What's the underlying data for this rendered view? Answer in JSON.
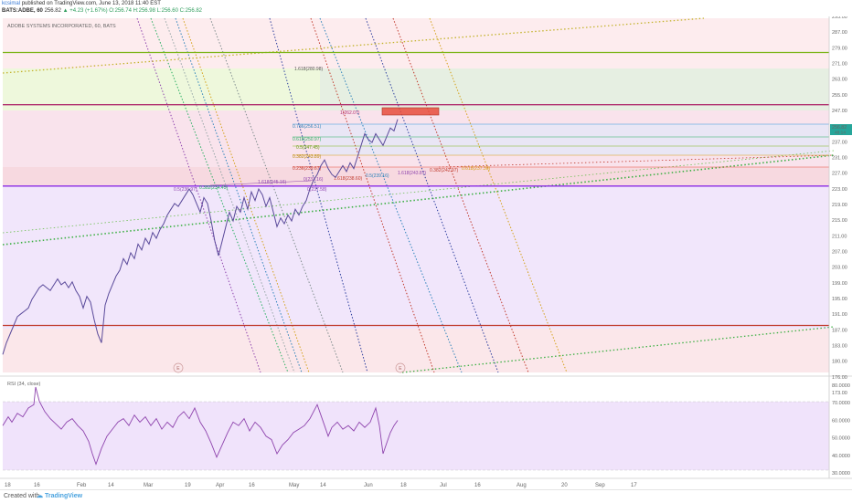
{
  "header": {
    "user": "kcsimal",
    "published": "published on TradingView.com, June 13, 2018 11:40 EST",
    "ticker": "BATS:ADBE, 60",
    "price": "256.82",
    "change": "▲ +4.23 (+1.67%)",
    "ohlc": "O:256.74 H:256.98 L:256.60 C:256.82"
  },
  "chart_data": [
    {
      "type": "line",
      "title": "ADOBE SYSTEMS INCORPORATED, 60, BATS",
      "x_ticks": [
        "18",
        "16",
        "Feb",
        "14",
        "Mar",
        "19",
        "Apr",
        "16",
        "May",
        "14",
        "Jun",
        "18",
        "Jul",
        "16",
        "Aug",
        "20",
        "Sep",
        "17"
      ],
      "y_ticks": [
        "295.00",
        "287.00",
        "279.00",
        "271.00",
        "263.00",
        "255.00",
        "247.00",
        "242.00",
        "237.00",
        "231.00",
        "227.00",
        "223.00",
        "219.00",
        "215.00",
        "211.00",
        "207.00",
        "203.00",
        "199.00",
        "195.00",
        "191.00",
        "187.00",
        "183.00",
        "180.00",
        "176.00",
        "173.00"
      ],
      "price_label": "256.82",
      "time_label": "48:14",
      "horizontal_lines": [
        {
          "value": 280,
          "color": "#7cb518"
        },
        {
          "value": 262,
          "color": "#b0306f"
        },
        {
          "value": 234,
          "color": "#8a2be2"
        },
        {
          "value": 186,
          "color": "#c0392b"
        }
      ],
      "fib_labels": [
        "1.618(280.98)",
        "1(262.07)",
        "0.786(256.51)",
        "0.618(250.97)",
        "0.5(247.45)",
        "0.382(243.89)",
        "0.236(239.67)",
        "0(233.16)",
        "0.5(236.97)",
        "0.382(234.45)",
        "1.618(245.16)",
        "0(237.58)",
        "1.618(238.60)",
        "0.5(239.16)",
        "1.618(243.87)",
        "0.382(242.97)",
        "0.618(237.30)"
      ],
      "event_markers": [
        "E",
        "E"
      ],
      "series": [
        {
          "name": "",
          "values": [
            [
              0,
              176
            ],
            [
              4,
              180
            ],
            [
              8,
              183
            ],
            [
              12,
              186
            ],
            [
              16,
              189
            ],
            [
              20,
              190
            ],
            [
              24,
              191
            ],
            [
              28,
              192
            ],
            [
              32,
              195
            ],
            [
              36,
              197
            ],
            [
              40,
              199
            ],
            [
              44,
              200
            ],
            [
              48,
              199
            ],
            [
              52,
              198
            ],
            [
              56,
              200
            ],
            [
              60,
              202
            ],
            [
              64,
              200
            ],
            [
              68,
              201
            ],
            [
              72,
              199
            ],
            [
              76,
              201
            ],
            [
              80,
              198
            ],
            [
              84,
              196
            ],
            [
              88,
              192
            ],
            [
              92,
              196
            ],
            [
              96,
              194
            ],
            [
              100,
              188
            ],
            [
              104,
              183
            ],
            [
              108,
              180
            ],
            [
              112,
              193
            ],
            [
              116,
              197
            ],
            [
              120,
              200
            ],
            [
              124,
              203
            ],
            [
              128,
              205
            ],
            [
              132,
              209
            ],
            [
              136,
              207
            ],
            [
              140,
              211
            ],
            [
              144,
              209
            ],
            [
              148,
              214
            ],
            [
              152,
              212
            ],
            [
              156,
              216
            ],
            [
              160,
              214
            ],
            [
              164,
              218
            ],
            [
              168,
              216
            ],
            [
              172,
              219
            ],
            [
              176,
              221
            ],
            [
              180,
              224
            ],
            [
              184,
              226
            ],
            [
              188,
              228
            ],
            [
              192,
              227
            ],
            [
              196,
              229
            ],
            [
              200,
              231
            ],
            [
              204,
              233
            ],
            [
              208,
              231
            ],
            [
              212,
              228
            ],
            [
              216,
              225
            ],
            [
              220,
              230
            ],
            [
              224,
              228
            ],
            [
              228,
              222
            ],
            [
              232,
              215
            ],
            [
              236,
              210
            ],
            [
              240,
              215
            ],
            [
              244,
              220
            ],
            [
              248,
              225
            ],
            [
              252,
              222
            ],
            [
              256,
              227
            ],
            [
              260,
              225
            ],
            [
              264,
              230
            ],
            [
              268,
              226
            ],
            [
              272,
              232
            ],
            [
              276,
              229
            ],
            [
              280,
              233
            ],
            [
              284,
              231
            ],
            [
              288,
              227
            ],
            [
              292,
              230
            ],
            [
              296,
              225
            ],
            [
              300,
              220
            ],
            [
              304,
              223
            ],
            [
              308,
              221
            ],
            [
              312,
              224
            ],
            [
              316,
              222
            ],
            [
              320,
              226
            ],
            [
              324,
              224
            ],
            [
              328,
              227
            ],
            [
              332,
              229
            ],
            [
              336,
              233
            ],
            [
              340,
              236
            ],
            [
              344,
              238
            ],
            [
              348,
              241
            ],
            [
              352,
              243
            ],
            [
              356,
              240
            ],
            [
              360,
              238
            ],
            [
              364,
              237
            ],
            [
              368,
              239
            ],
            [
              372,
              241
            ],
            [
              376,
              239
            ],
            [
              380,
              242
            ],
            [
              384,
              240
            ],
            [
              388,
              244
            ],
            [
              392,
              248
            ],
            [
              396,
              252
            ],
            [
              400,
              250
            ],
            [
              404,
              249
            ],
            [
              408,
              252
            ],
            [
              412,
              250
            ],
            [
              416,
              248
            ],
            [
              420,
              251
            ],
            [
              424,
              254
            ],
            [
              428,
              253
            ],
            [
              432,
              257
            ]
          ]
        }
      ]
    },
    {
      "type": "line",
      "title": "RSI (34, close)",
      "y_ticks": [
        "80.0000",
        "70.0000",
        "60.0000",
        "50.0000",
        "40.0000",
        "30.0000"
      ],
      "series": [
        {
          "name": "",
          "values": [
            [
              0,
              58
            ],
            [
              6,
              63
            ],
            [
              10,
              60
            ],
            [
              16,
              65
            ],
            [
              22,
              63
            ],
            [
              28,
              68
            ],
            [
              34,
              70
            ],
            [
              36,
              80
            ],
            [
              40,
              72
            ],
            [
              46,
              66
            ],
            [
              52,
              62
            ],
            [
              58,
              59
            ],
            [
              64,
              56
            ],
            [
              70,
              60
            ],
            [
              76,
              62
            ],
            [
              82,
              58
            ],
            [
              88,
              55
            ],
            [
              94,
              49
            ],
            [
              98,
              42
            ],
            [
              102,
              36
            ],
            [
              108,
              45
            ],
            [
              114,
              52
            ],
            [
              120,
              56
            ],
            [
              126,
              60
            ],
            [
              132,
              62
            ],
            [
              138,
              58
            ],
            [
              144,
              64
            ],
            [
              150,
              60
            ],
            [
              156,
              63
            ],
            [
              162,
              58
            ],
            [
              168,
              62
            ],
            [
              174,
              56
            ],
            [
              180,
              60
            ],
            [
              186,
              57
            ],
            [
              192,
              63
            ],
            [
              198,
              66
            ],
            [
              204,
              62
            ],
            [
              210,
              68
            ],
            [
              216,
              60
            ],
            [
              222,
              55
            ],
            [
              228,
              48
            ],
            [
              234,
              40
            ],
            [
              240,
              47
            ],
            [
              246,
              54
            ],
            [
              252,
              60
            ],
            [
              258,
              58
            ],
            [
              264,
              62
            ],
            [
              270,
              55
            ],
            [
              276,
              60
            ],
            [
              282,
              57
            ],
            [
              288,
              52
            ],
            [
              294,
              50
            ],
            [
              300,
              42
            ],
            [
              306,
              47
            ],
            [
              312,
              50
            ],
            [
              318,
              54
            ],
            [
              324,
              56
            ],
            [
              330,
              58
            ],
            [
              336,
              62
            ],
            [
              340,
              66
            ],
            [
              344,
              70
            ],
            [
              348,
              64
            ],
            [
              352,
              58
            ],
            [
              356,
              52
            ],
            [
              360,
              57
            ],
            [
              366,
              60
            ],
            [
              372,
              56
            ],
            [
              378,
              58
            ],
            [
              384,
              55
            ],
            [
              390,
              60
            ],
            [
              396,
              57
            ],
            [
              402,
              60
            ],
            [
              408,
              68
            ],
            [
              412,
              58
            ],
            [
              416,
              42
            ],
            [
              420,
              48
            ],
            [
              424,
              54
            ],
            [
              428,
              58
            ],
            [
              432,
              61
            ]
          ]
        }
      ]
    }
  ],
  "footer": {
    "created_with": "Created with",
    "brand": "TradingView"
  }
}
